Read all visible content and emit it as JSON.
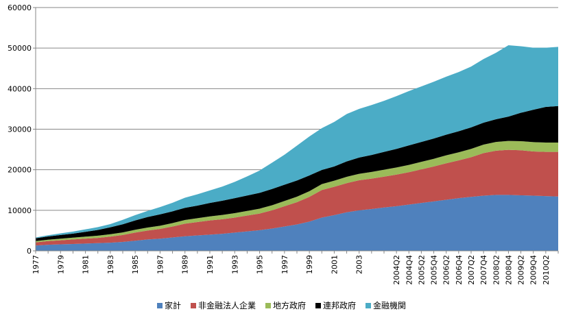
{
  "chart_data": {
    "type": "area",
    "stacked": true,
    "title": "",
    "xlabel": "",
    "ylabel": "",
    "ylim": [
      0,
      60000
    ],
    "yticks": [
      0,
      10000,
      20000,
      30000,
      40000,
      50000,
      60000
    ],
    "grid": true,
    "legend_position": "bottom",
    "x": [
      "1977",
      "1978",
      "1979",
      "1980",
      "1981",
      "1982",
      "1983",
      "1984",
      "1985",
      "1986",
      "1987",
      "1988",
      "1989",
      "1990",
      "1991",
      "1992",
      "1993",
      "1994",
      "1995",
      "1996",
      "1997",
      "1998",
      "1999",
      "2000",
      "2001",
      "2002",
      "2003",
      "2003Q2",
      "2003Q4",
      "2004Q2",
      "2004Q4",
      "2005Q2",
      "2005Q4",
      "2006Q2",
      "2006Q4",
      "2007Q2",
      "2007Q4",
      "2008Q2",
      "2008Q4",
      "2009Q2",
      "2009Q4",
      "2010Q2",
      "2010Q4"
    ],
    "xticks_shown": [
      "1977",
      "1979",
      "1981",
      "1983",
      "1985",
      "1987",
      "1989",
      "1991",
      "1993",
      "1995",
      "1997",
      "1999",
      "2001",
      "2003",
      "2004Q2",
      "2004Q4",
      "2005Q2",
      "2005Q4",
      "2006Q2",
      "2006Q4",
      "2007Q2",
      "2007Q4",
      "2008Q2",
      "2008Q4",
      "2009Q2",
      "2009Q4",
      "2010Q2"
    ],
    "series": [
      {
        "name": "家計",
        "color": "#4F81BD",
        "values": [
          1300,
          1500,
          1600,
          1700,
          1800,
          1900,
          2000,
          2200,
          2500,
          2800,
          3000,
          3300,
          3600,
          3800,
          4000,
          4200,
          4500,
          4800,
          5100,
          5500,
          6000,
          6500,
          7200,
          8200,
          8800,
          9500,
          10000,
          10300,
          10700,
          11000,
          11400,
          11800,
          12200,
          12600,
          13000,
          13300,
          13600,
          13800,
          13800,
          13700,
          13600,
          13500,
          13400
        ]
      },
      {
        "name": "非金融法人企業",
        "color": "#C0504D",
        "values": [
          800,
          900,
          1000,
          1100,
          1200,
          1300,
          1500,
          1700,
          2000,
          2200,
          2400,
          2700,
          3100,
          3300,
          3500,
          3600,
          3700,
          3900,
          4100,
          4500,
          5000,
          5500,
          6100,
          6800,
          7000,
          7200,
          7400,
          7500,
          7600,
          7800,
          8000,
          8300,
          8600,
          9000,
          9300,
          9800,
          10500,
          10900,
          11100,
          11100,
          10900,
          10900,
          11000
        ]
      },
      {
        "name": "地方政府",
        "color": "#9BBB59",
        "values": [
          300,
          350,
          400,
          450,
          500,
          550,
          600,
          650,
          700,
          750,
          800,
          850,
          900,
          950,
          1000,
          1050,
          1100,
          1150,
          1200,
          1250,
          1300,
          1350,
          1400,
          1450,
          1500,
          1550,
          1600,
          1650,
          1700,
          1750,
          1800,
          1850,
          1900,
          1950,
          2000,
          2050,
          2100,
          2150,
          2200,
          2250,
          2300,
          2300,
          2300
        ]
      },
      {
        "name": "連邦政府",
        "color": "#000000",
        "values": [
          700,
          800,
          900,
          1000,
          1200,
          1400,
          1700,
          2000,
          2300,
          2600,
          2800,
          2900,
          3000,
          3100,
          3300,
          3500,
          3700,
          3800,
          3900,
          4000,
          4000,
          4000,
          3900,
          3500,
          3500,
          3800,
          4000,
          4200,
          4400,
          4600,
          4800,
          4900,
          5000,
          5100,
          5200,
          5300,
          5400,
          5600,
          6000,
          7000,
          8000,
          8800,
          9000
        ]
      },
      {
        "name": "金融機関",
        "color": "#4BACC6",
        "values": [
          200,
          300,
          400,
          500,
          600,
          700,
          800,
          1100,
          1300,
          1500,
          1800,
          2100,
          2500,
          2800,
          3100,
          3500,
          4000,
          4700,
          5500,
          6500,
          7400,
          8600,
          9600,
          10300,
          11000,
          11700,
          12000,
          12300,
          12600,
          13000,
          13400,
          13700,
          14000,
          14300,
          14600,
          15000,
          15700,
          16400,
          17600,
          16400,
          15300,
          14600,
          14600
        ]
      }
    ]
  }
}
